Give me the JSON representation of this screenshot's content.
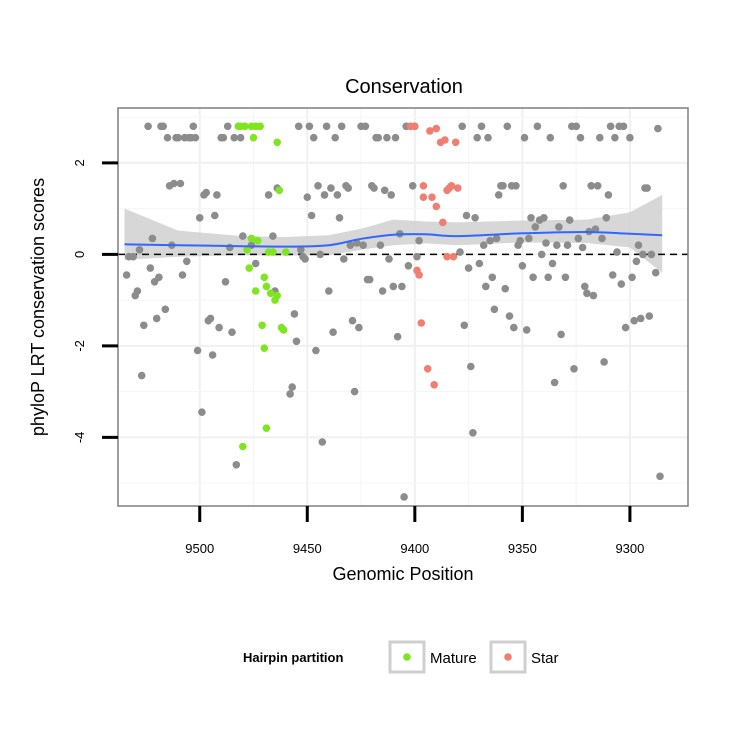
{
  "chart_data": {
    "type": "scatter",
    "title": "Conservation",
    "xlabel": "Genomic Position",
    "ylabel": "phyloP LRT conservation scores",
    "x_reversed": true,
    "xlim": [
      9538,
      9273
    ],
    "ylim": [
      -5.5,
      3.2
    ],
    "x_ticks": [
      9500,
      9450,
      9400,
      9350,
      9300
    ],
    "x_tick_labels": [
      "9500",
      "9450",
      "9400",
      "9350",
      "9300"
    ],
    "y_ticks": [
      2,
      0,
      -2,
      -4
    ],
    "y_tick_labels": [
      "2",
      "0",
      "-2",
      "-4"
    ],
    "grid": true,
    "reference_line": {
      "y": 0,
      "style": "dashed",
      "color": "#000000"
    },
    "colors": {
      "other": "#8c8c8c",
      "Mature": "#7fe51f",
      "Star": "#f07f72",
      "smooth": "#3366ff",
      "band": "#d0d0d0"
    },
    "series": [
      {
        "name": "",
        "color": "#8c8c8c",
        "points": [
          [
            9534,
            -0.45
          ],
          [
            9533,
            -0.05
          ],
          [
            9531,
            -0.05
          ],
          [
            9530,
            -0.9
          ],
          [
            9529,
            -0.8
          ],
          [
            9528,
            0.1
          ],
          [
            9527,
            -2.65
          ],
          [
            9526,
            -1.55
          ],
          [
            9524,
            2.8
          ],
          [
            9523,
            -0.3
          ],
          [
            9522,
            0.35
          ],
          [
            9521,
            -0.6
          ],
          [
            9520,
            -1.4
          ],
          [
            9519,
            -0.5
          ],
          [
            9518,
            2.8
          ],
          [
            9517,
            2.8
          ],
          [
            9516,
            -1.2
          ],
          [
            9515,
            2.55
          ],
          [
            9514,
            1.5
          ],
          [
            9513,
            0.2
          ],
          [
            9512,
            1.55
          ],
          [
            9511,
            2.55
          ],
          [
            9510,
            2.55
          ],
          [
            9509,
            1.55
          ],
          [
            9508,
            -0.45
          ],
          [
            9507,
            2.55
          ],
          [
            9506,
            -0.15
          ],
          [
            9505,
            2.55
          ],
          [
            9504,
            2.55
          ],
          [
            9503,
            2.8
          ],
          [
            9502,
            2.55
          ],
          [
            9501,
            -2.1
          ],
          [
            9500,
            0.8
          ],
          [
            9499,
            -3.45
          ],
          [
            9498,
            1.3
          ],
          [
            9497,
            1.35
          ],
          [
            9496,
            -1.45
          ],
          [
            9495,
            -1.4
          ],
          [
            9494,
            -2.2
          ],
          [
            9493,
            0.85
          ],
          [
            9492,
            1.3
          ],
          [
            9491,
            -1.6
          ],
          [
            9490,
            2.55
          ],
          [
            9489,
            2.55
          ],
          [
            9488,
            -0.6
          ],
          [
            9487,
            2.8
          ],
          [
            9486,
            0.15
          ],
          [
            9485,
            -1.7
          ],
          [
            9484,
            2.55
          ],
          [
            9483,
            -4.6
          ],
          [
            9482,
            2.8
          ],
          [
            9481,
            2.55
          ],
          [
            9480,
            0.4
          ],
          [
            9476,
            0.2
          ],
          [
            9474,
            -0.2
          ],
          [
            9472,
            2.8
          ],
          [
            9468,
            1.3
          ],
          [
            9466,
            0.4
          ],
          [
            9465,
            -0.8
          ],
          [
            9464,
            1.45
          ],
          [
            9458,
            -3.05
          ],
          [
            9457,
            -2.9
          ],
          [
            9456,
            -1.3
          ],
          [
            9455,
            -1.9
          ],
          [
            9454,
            2.8
          ],
          [
            9453,
            0.1
          ],
          [
            9452,
            -0.05
          ],
          [
            9451,
            -0.1
          ],
          [
            9450,
            1.25
          ],
          [
            9449,
            2.8
          ],
          [
            9448,
            0.85
          ],
          [
            9447,
            2.55
          ],
          [
            9446,
            -2.1
          ],
          [
            9445,
            1.5
          ],
          [
            9444,
            0.0
          ],
          [
            9443,
            -4.1
          ],
          [
            9442,
            1.3
          ],
          [
            9441,
            2.8
          ],
          [
            9440,
            -0.8
          ],
          [
            9439,
            1.45
          ],
          [
            9438,
            -1.7
          ],
          [
            9437,
            2.55
          ],
          [
            9436,
            1.3
          ],
          [
            9435,
            0.8
          ],
          [
            9434,
            2.8
          ],
          [
            9433,
            -0.1
          ],
          [
            9432,
            1.5
          ],
          [
            9431,
            1.45
          ],
          [
            9430,
            0.2
          ],
          [
            9429,
            -1.45
          ],
          [
            9428,
            -3.0
          ],
          [
            9427,
            0.25
          ],
          [
            9426,
            -1.6
          ],
          [
            9425,
            2.8
          ],
          [
            9424,
            0.2
          ],
          [
            9423,
            2.8
          ],
          [
            9422,
            -0.55
          ],
          [
            9421,
            -0.55
          ],
          [
            9420,
            1.5
          ],
          [
            9419,
            1.45
          ],
          [
            9418,
            2.55
          ],
          [
            9417,
            2.55
          ],
          [
            9416,
            0.2
          ],
          [
            9415,
            -0.8
          ],
          [
            9414,
            1.4
          ],
          [
            9413,
            2.55
          ],
          [
            9412,
            -0.1
          ],
          [
            9411,
            1.3
          ],
          [
            9410,
            -0.7
          ],
          [
            9409,
            2.55
          ],
          [
            9408,
            -1.8
          ],
          [
            9407,
            0.45
          ],
          [
            9406,
            -0.7
          ],
          [
            9405,
            -5.3
          ],
          [
            9404,
            2.8
          ],
          [
            9403,
            -0.25
          ],
          [
            9402,
            2.8
          ],
          [
            9401,
            1.5
          ],
          [
            9400,
            2.8
          ],
          [
            9399,
            -0.05
          ],
          [
            9398,
            0.3
          ],
          [
            9379,
            0.05
          ],
          [
            9378,
            2.8
          ],
          [
            9377,
            -1.55
          ],
          [
            9376,
            0.85
          ],
          [
            9375,
            -0.3
          ],
          [
            9374,
            -2.45
          ],
          [
            9373,
            -3.9
          ],
          [
            9372,
            0.8
          ],
          [
            9371,
            2.55
          ],
          [
            9370,
            -0.2
          ],
          [
            9369,
            2.8
          ],
          [
            9368,
            0.2
          ],
          [
            9367,
            -0.7
          ],
          [
            9366,
            2.55
          ],
          [
            9365,
            0.3
          ],
          [
            9364,
            -0.5
          ],
          [
            9363,
            -1.2
          ],
          [
            9362,
            0.35
          ],
          [
            9361,
            1.3
          ],
          [
            9360,
            1.5
          ],
          [
            9359,
            1.5
          ],
          [
            9358,
            -0.75
          ],
          [
            9357,
            2.8
          ],
          [
            9356,
            -1.35
          ],
          [
            9355,
            1.5
          ],
          [
            9354,
            -1.6
          ],
          [
            9353,
            1.5
          ],
          [
            9352,
            0.2
          ],
          [
            9351,
            0.3
          ],
          [
            9350,
            -0.25
          ],
          [
            9349,
            2.55
          ],
          [
            9348,
            -1.65
          ],
          [
            9347,
            0.35
          ],
          [
            9346,
            0.8
          ],
          [
            9345,
            -0.5
          ],
          [
            9344,
            0.6
          ],
          [
            9343,
            2.8
          ],
          [
            9342,
            0.75
          ],
          [
            9341,
            0.0
          ],
          [
            9340,
            0.8
          ],
          [
            9339,
            0.25
          ],
          [
            9338,
            -0.5
          ],
          [
            9337,
            2.55
          ],
          [
            9336,
            -0.2
          ],
          [
            9335,
            -2.8
          ],
          [
            9334,
            0.2
          ],
          [
            9333,
            0.6
          ],
          [
            9332,
            -1.75
          ],
          [
            9331,
            1.5
          ],
          [
            9330,
            -0.5
          ],
          [
            9329,
            0.2
          ],
          [
            9328,
            0.75
          ],
          [
            9327,
            2.8
          ],
          [
            9326,
            -2.5
          ],
          [
            9325,
            2.8
          ],
          [
            9324,
            0.35
          ],
          [
            9323,
            2.55
          ],
          [
            9322,
            0.15
          ],
          [
            9321,
            -0.7
          ],
          [
            9320,
            -0.85
          ],
          [
            9319,
            0.5
          ],
          [
            9318,
            1.5
          ],
          [
            9317,
            -0.9
          ],
          [
            9316,
            0.55
          ],
          [
            9315,
            1.5
          ],
          [
            9314,
            2.55
          ],
          [
            9313,
            0.35
          ],
          [
            9312,
            -2.35
          ],
          [
            9311,
            0.8
          ],
          [
            9310,
            1.3
          ],
          [
            9309,
            2.8
          ],
          [
            9308,
            -0.45
          ],
          [
            9307,
            2.55
          ],
          [
            9306,
            0.05
          ],
          [
            9305,
            2.8
          ],
          [
            9304,
            -0.65
          ],
          [
            9303,
            2.8
          ],
          [
            9302,
            -1.6
          ],
          [
            9300,
            2.55
          ],
          [
            9299,
            -0.5
          ],
          [
            9298,
            -1.45
          ],
          [
            9297,
            -0.15
          ],
          [
            9296,
            0.2
          ],
          [
            9295,
            -1.4
          ],
          [
            9294,
            0.0
          ],
          [
            9293,
            1.45
          ],
          [
            9292,
            1.45
          ],
          [
            9291,
            -1.35
          ],
          [
            9290,
            0.0
          ],
          [
            9288,
            -0.4
          ],
          [
            9287,
            2.75
          ],
          [
            9286,
            -4.85
          ]
        ]
      },
      {
        "name": "Mature",
        "color": "#7fe51f",
        "points": [
          [
            9482,
            2.8
          ],
          [
            9481,
            2.8
          ],
          [
            9480,
            -4.2
          ],
          [
            9479,
            2.8
          ],
          [
            9478,
            0.1
          ],
          [
            9477,
            -0.3
          ],
          [
            9476,
            2.8
          ],
          [
            9476,
            0.35
          ],
          [
            9475,
            2.55
          ],
          [
            9474,
            -0.8
          ],
          [
            9474,
            2.8
          ],
          [
            9473,
            0.3
          ],
          [
            9472,
            2.8
          ],
          [
            9471,
            -1.55
          ],
          [
            9470,
            -2.05
          ],
          [
            9470,
            -0.5
          ],
          [
            9469,
            -3.8
          ],
          [
            9469,
            -0.7
          ],
          [
            9468,
            0.05
          ],
          [
            9467,
            -0.85
          ],
          [
            9466,
            0.05
          ],
          [
            9465,
            -1.0
          ],
          [
            9464,
            2.45
          ],
          [
            9464,
            -0.9
          ],
          [
            9463,
            1.4
          ],
          [
            9462,
            -1.6
          ],
          [
            9461,
            -1.65
          ],
          [
            9460,
            0.05
          ]
        ]
      },
      {
        "name": "Star",
        "color": "#f07f72",
        "points": [
          [
            9402,
            2.8
          ],
          [
            9400,
            2.8
          ],
          [
            9399,
            -0.35
          ],
          [
            9398,
            -0.45
          ],
          [
            9397,
            -1.5
          ],
          [
            9396,
            1.5
          ],
          [
            9396,
            1.25
          ],
          [
            9394,
            -2.5
          ],
          [
            9393,
            2.7
          ],
          [
            9392,
            1.25
          ],
          [
            9391,
            -2.85
          ],
          [
            9390,
            2.75
          ],
          [
            9390,
            1.05
          ],
          [
            9388,
            2.45
          ],
          [
            9387,
            0.7
          ],
          [
            9386,
            2.5
          ],
          [
            9385,
            1.4
          ],
          [
            9385,
            -0.05
          ],
          [
            9384,
            1.45
          ],
          [
            9383,
            1.5
          ],
          [
            9382,
            -0.05
          ],
          [
            9381,
            2.45
          ],
          [
            9380,
            1.45
          ]
        ]
      }
    ],
    "smooth": {
      "x": [
        9535,
        9510,
        9480,
        9460,
        9440,
        9425,
        9410,
        9395,
        9380,
        9350,
        9320,
        9300,
        9285
      ],
      "y": [
        0.22,
        0.2,
        0.18,
        0.17,
        0.2,
        0.34,
        0.43,
        0.44,
        0.4,
        0.46,
        0.49,
        0.45,
        0.42
      ],
      "lower": [
        -0.12,
        -0.05,
        -0.02,
        -0.03,
        -0.02,
        0.1,
        0.2,
        0.24,
        0.2,
        0.26,
        0.25,
        0.15,
        -0.4
      ],
      "upper": [
        1.0,
        0.52,
        0.4,
        0.38,
        0.42,
        0.56,
        0.76,
        0.72,
        0.7,
        0.74,
        0.76,
        0.92,
        1.3
      ]
    },
    "legend": {
      "title": "Hairpin partition",
      "position": "bottom",
      "entries": [
        "Mature",
        "Star"
      ]
    }
  }
}
